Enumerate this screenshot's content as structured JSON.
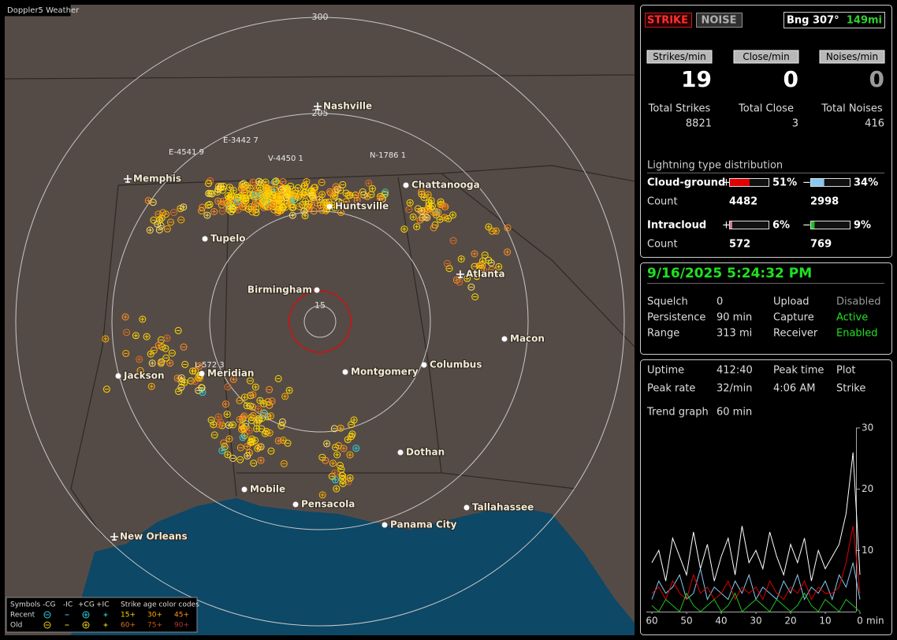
{
  "app_title": "Doppler5 Weather",
  "map": {
    "range_labels": [
      "300",
      "205",
      "15"
    ],
    "cities": [
      "Nashville",
      "Memphis",
      "Chattanooga",
      "Huntsville",
      "Tupelo",
      "Atlanta",
      "Birmingham",
      "Macon",
      "Jackson",
      "Meridian",
      "Montgomery",
      "Columbus",
      "Dothan",
      "Mobile",
      "Pensacola",
      "Tallahassee",
      "Panama City",
      "New Orleans"
    ],
    "strike_tags": [
      "E-4541 9",
      "E-3442 7",
      "V-4450 1",
      "N-1786 1",
      "L-572 3"
    ],
    "legend": {
      "header": [
        "Symbols",
        "-CG",
        "-IC",
        "+CG",
        "+IC",
        "Strike age color codes"
      ],
      "rows": [
        {
          "label": "Recent",
          "ages": [
            "15+",
            "30+",
            "45+"
          ]
        },
        {
          "label": "Old",
          "ages": [
            "60+",
            "75+",
            "90+"
          ]
        }
      ]
    }
  },
  "status": {
    "modes": [
      "STRIKE",
      "NOISE"
    ],
    "bearing": "Bng 307°",
    "distance": "149mi",
    "rates": [
      {
        "header": "Strikes/min",
        "value": "19",
        "total_label": "Total Strikes",
        "total": "8821"
      },
      {
        "header": "Close/min",
        "value": "0",
        "total_label": "Total Close",
        "total": "3"
      },
      {
        "header": "Noises/min",
        "value": "0",
        "total_label": "Total Noises",
        "total": "416"
      }
    ],
    "distribution": {
      "title": "Lightning type distribution",
      "count_label": "Count",
      "pos_sign": "+",
      "neg_sign": "−",
      "rows": [
        {
          "name": "Cloud-ground",
          "pos": {
            "value": 51,
            "label": "51%"
          },
          "neg": {
            "value": 34,
            "label": "34%"
          },
          "pos_color": "#e00000",
          "neg_color": "#88c8f0",
          "pos_count": "4482",
          "neg_count": "2998"
        },
        {
          "name": "Intracloud",
          "pos": {
            "value": 6,
            "label": "6%"
          },
          "neg": {
            "value": 9,
            "label": "9%"
          },
          "pos_color": "#e070a0",
          "neg_color": "#20c020",
          "pos_count": "572",
          "neg_count": "769"
        }
      ]
    }
  },
  "settings": {
    "datetime": "9/16/2025 5:24:32 PM",
    "rows": [
      [
        "Squelch",
        "0",
        "Upload",
        "Disabled"
      ],
      [
        "Persistence",
        "90 min",
        "Capture",
        "Active"
      ],
      [
        "Range",
        "313 mi",
        "Receiver",
        "Enabled"
      ]
    ]
  },
  "stats": {
    "rows": [
      [
        "Uptime",
        "412:40",
        "Peak time",
        "Plot"
      ],
      [
        "Peak rate",
        "32/min",
        "4:06 AM",
        "Strike"
      ]
    ],
    "trend_label": "Trend graph",
    "trend_window": "60 min"
  },
  "trend": {
    "xlim": [
      60,
      0
    ],
    "xticks": [
      60,
      50,
      40,
      30,
      20,
      10,
      0
    ],
    "x_unit": "min",
    "ylim": [
      0,
      30
    ],
    "yticks": [
      10,
      20,
      30
    ],
    "x": [
      60,
      58,
      56,
      54,
      52,
      50,
      48,
      46,
      44,
      42,
      40,
      38,
      36,
      34,
      32,
      30,
      28,
      26,
      24,
      22,
      20,
      18,
      16,
      14,
      12,
      10,
      8,
      6,
      4,
      2,
      0
    ],
    "series": [
      {
        "color": "#ffffff",
        "values": [
          8,
          10,
          5,
          12,
          9,
          6,
          13,
          7,
          11,
          5,
          9,
          12,
          6,
          14,
          8,
          10,
          7,
          13,
          9,
          6,
          11,
          8,
          12,
          5,
          10,
          7,
          9,
          11,
          16,
          26,
          6
        ]
      },
      {
        "color": "#88c8f0",
        "values": [
          2,
          5,
          3,
          4,
          6,
          2,
          3,
          7,
          2,
          4,
          3,
          2,
          5,
          3,
          6,
          2,
          4,
          3,
          2,
          5,
          3,
          6,
          2,
          4,
          3,
          5,
          2,
          6,
          4,
          8,
          2
        ]
      },
      {
        "color": "#e00000",
        "values": [
          3,
          4,
          2,
          5,
          3,
          2,
          6,
          3,
          4,
          2,
          3,
          5,
          2,
          4,
          3,
          4,
          2,
          5,
          3,
          2,
          4,
          3,
          5,
          2,
          4,
          3,
          3,
          4,
          8,
          14,
          3
        ]
      },
      {
        "color": "#20c020",
        "values": [
          1,
          0,
          2,
          1,
          0,
          3,
          1,
          0,
          1,
          2,
          0,
          1,
          3,
          0,
          1,
          2,
          1,
          0,
          2,
          1,
          0,
          1,
          3,
          1,
          0,
          2,
          1,
          0,
          2,
          1,
          0
        ]
      }
    ]
  }
}
